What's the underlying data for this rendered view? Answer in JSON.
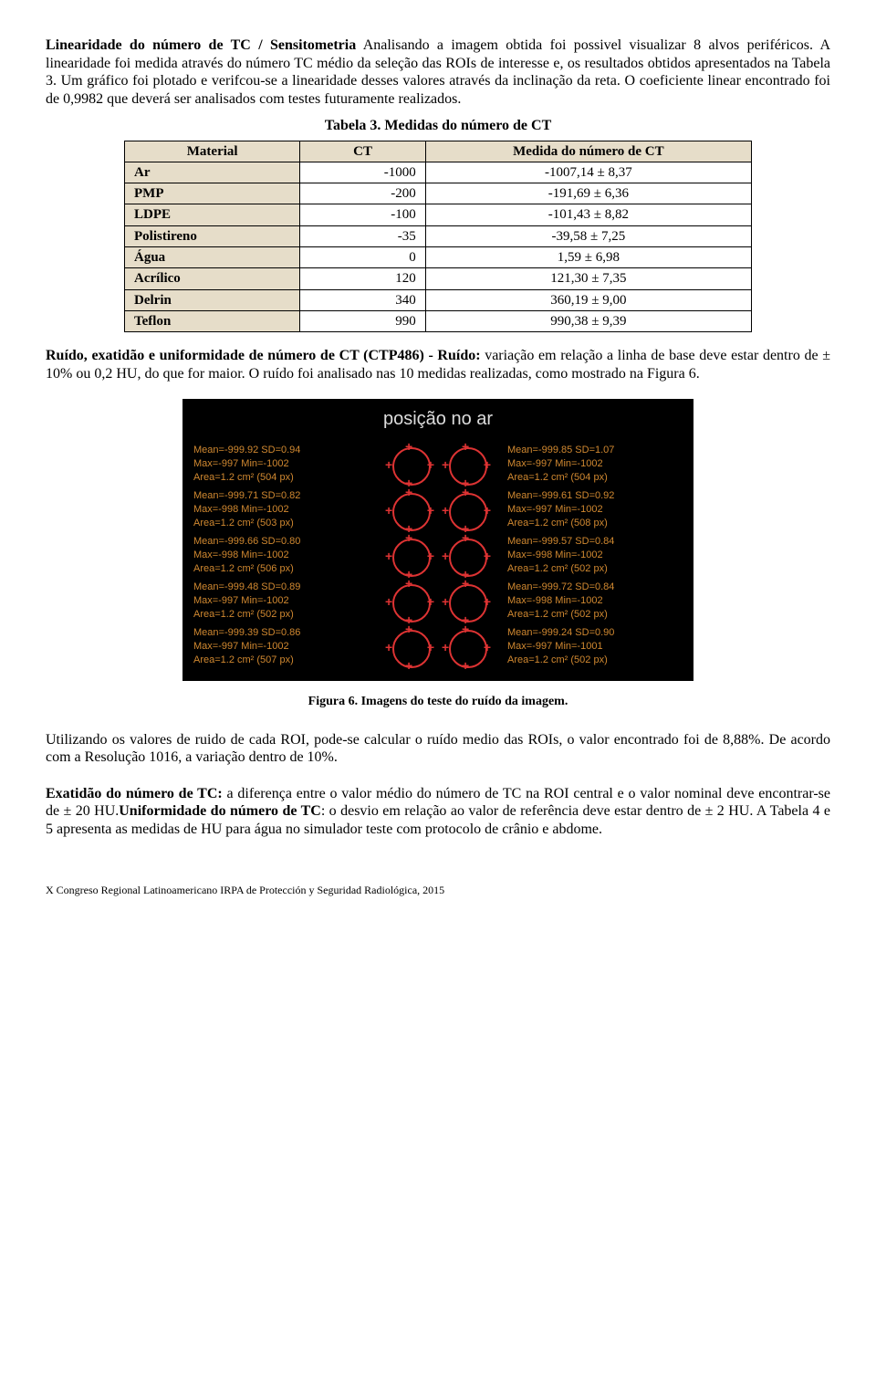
{
  "para1": {
    "heading": "Linearidade do número de TC / Sensitometria",
    "body": " Analisando a imagem obtida foi possivel visualizar 8 alvos periféricos. A linearidade foi medida através do número TC médio da seleção das ROIs de interesse e, os resultados obtidos apresentados na Tabela 3. Um gráfico foi plotado e verifcou-se a linearidade desses valores através da inclinação da reta. O coeficiente linear encontrado foi de 0,9982 que deverá ser analisados com testes futuramente realizados."
  },
  "table3": {
    "caption": "Tabela 3. Medidas do número de CT",
    "headers": [
      "Material",
      "CT",
      "Medida do número de CT"
    ],
    "rows": [
      [
        "Ar",
        "-1000",
        "-1007,14  ± 8,37"
      ],
      [
        "PMP",
        "-200",
        "-191,69  ± 6,36"
      ],
      [
        "LDPE",
        "-100",
        "-101,43  ± 8,82"
      ],
      [
        "Polistireno",
        "-35",
        "-39,58  ± 7,25"
      ],
      [
        "Água",
        "0",
        "1,59  ± 6,98"
      ],
      [
        "Acrílico",
        "120",
        "121,30  ± 7,35"
      ],
      [
        "Delrin",
        "340",
        "360,19  ± 9,00"
      ],
      [
        "Teflon",
        "990",
        "990,38  ± 9,39"
      ]
    ]
  },
  "para2": {
    "heading": "Ruído, exatidão e uniformidade de número de CT (CTP486) - Ruído:",
    "body": " variação em relação a linha de base deve estar dentro de ± 10% ou 0,2 HU, do que for maior. O ruído foi analisado nas 10 medidas realizadas, como mostrado na Figura 6."
  },
  "figure6": {
    "title": "posição no ar",
    "rows": [
      {
        "left": {
          "mean": "-999.92",
          "sd": "0.94",
          "max": "-997",
          "min": "-1002",
          "area": "1.2 cm²",
          "px": "504 px"
        },
        "right": {
          "mean": "-999.85",
          "sd": "1.07",
          "max": "-997",
          "min": "-1002",
          "area": "1.2 cm²",
          "px": "504 px"
        }
      },
      {
        "left": {
          "mean": "-999.71",
          "sd": "0.82",
          "max": "-998",
          "min": "-1002",
          "area": "1.2 cm²",
          "px": "503 px"
        },
        "right": {
          "mean": "-999.61",
          "sd": "0.92",
          "max": "-997",
          "min": "-1002",
          "area": "1.2 cm²",
          "px": "508 px"
        }
      },
      {
        "left": {
          "mean": "-999.66",
          "sd": "0.80",
          "max": "-998",
          "min": "-1002",
          "area": "1.2 cm²",
          "px": "506 px"
        },
        "right": {
          "mean": "-999.57",
          "sd": "0.84",
          "max": "-998",
          "min": "-1002",
          "area": "1.2 cm²",
          "px": "502 px"
        }
      },
      {
        "left": {
          "mean": "-999.48",
          "sd": "0.89",
          "max": "-997",
          "min": "-1002",
          "area": "1.2 cm²",
          "px": "502 px"
        },
        "right": {
          "mean": "-999.72",
          "sd": "0.84",
          "max": "-998",
          "min": "-1002",
          "area": "1.2 cm²",
          "px": "502 px"
        }
      },
      {
        "left": {
          "mean": "-999.39",
          "sd": "0.86",
          "max": "-997",
          "min": "-1002",
          "area": "1.2 cm²",
          "px": "507 px"
        },
        "right": {
          "mean": "-999.24",
          "sd": "0.90",
          "max": "-997",
          "min": "-1001",
          "area": "1.2 cm²",
          "px": "502 px"
        }
      }
    ],
    "caption": "Figura 6. Imagens do teste do ruído da imagem."
  },
  "para3": "Utilizando os valores de ruido de cada ROI, pode-se calcular o ruído medio das ROIs, o valor encontrado foi de 8,88%. De acordo com a Resolução 1016, a variação dentro de 10%.",
  "para4": {
    "heading1": "Exatidão do número de TC:",
    "body1": " a diferença entre o valor médio do número de TC na ROI central e o valor nominal deve encontrar-se de ± 20 HU.",
    "heading2": "Uniformidade do número de TC",
    "body2": ": o desvio em relação ao valor de referência deve estar dentro de ± 2 HU. A Tabela 4 e 5 apresenta as medidas de HU para água no simulador teste com protocolo de crânio e abdome."
  },
  "footer": "X Congreso Regional Latinoamericano IRPA de Protección y Seguridad Radiológica, 2015"
}
